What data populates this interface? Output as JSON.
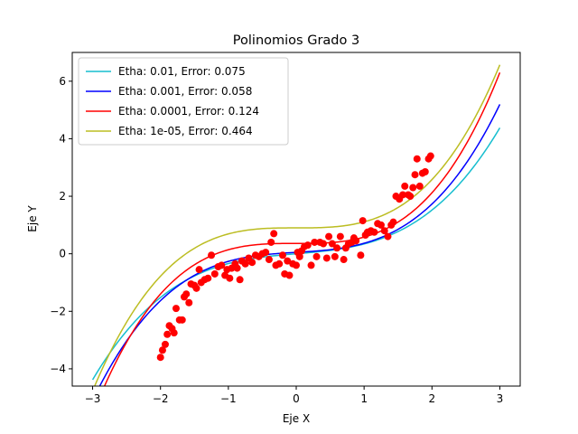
{
  "chart_data": {
    "type": "line",
    "title": "Polinomios Grado 3",
    "xlabel": "Eje X",
    "ylabel": "Eje Y",
    "xlim": [
      -3.3,
      3.3
    ],
    "ylim": [
      -4.6,
      7.0
    ],
    "xticks": [
      -3,
      -2,
      -1,
      0,
      1,
      2,
      3
    ],
    "yticks": [
      -4,
      -2,
      0,
      2,
      4,
      6
    ],
    "grid": false,
    "legend_position": "top-left",
    "series": [
      {
        "name": "Etha: 0.01, Error: 0.075",
        "color": "#17becf",
        "coeffs": [
          0.0,
          0.2,
          0.0,
          0.14
        ]
      },
      {
        "name": "Etha: 0.001, Error: 0.058",
        "color": "#0000ff",
        "coeffs": [
          0.05,
          0.14,
          0.0,
          0.175
        ]
      },
      {
        "name": "Etha: 0.0001, Error: 0.124",
        "color": "#ff0000",
        "coeffs": [
          0.36,
          0.0,
          0.0,
          0.22
        ]
      },
      {
        "name": "Etha: 1e-05, Error: 0.464",
        "color": "#bcbd22",
        "coeffs": [
          0.9,
          0.0,
          0.0,
          0.21
        ]
      }
    ],
    "x_range": [
      -3,
      3
    ],
    "scatter": {
      "color": "#ff0000",
      "points": [
        [
          -2.0,
          -3.6
        ],
        [
          -1.97,
          -3.35
        ],
        [
          -1.93,
          -3.15
        ],
        [
          -1.9,
          -2.8
        ],
        [
          -1.87,
          -2.5
        ],
        [
          -1.83,
          -2.6
        ],
        [
          -1.8,
          -2.75
        ],
        [
          -1.77,
          -1.9
        ],
        [
          -1.72,
          -2.3
        ],
        [
          -1.68,
          -2.3
        ],
        [
          -1.65,
          -1.5
        ],
        [
          -1.62,
          -1.4
        ],
        [
          -1.58,
          -1.7
        ],
        [
          -1.55,
          -1.05
        ],
        [
          -1.5,
          -1.1
        ],
        [
          -1.47,
          -1.2
        ],
        [
          -1.43,
          -0.55
        ],
        [
          -1.4,
          -1.0
        ],
        [
          -1.35,
          -0.9
        ],
        [
          -1.3,
          -0.85
        ],
        [
          -1.25,
          -0.05
        ],
        [
          -1.2,
          -0.7
        ],
        [
          -1.15,
          -0.45
        ],
        [
          -1.1,
          -0.4
        ],
        [
          -1.05,
          -0.75
        ],
        [
          -1.02,
          -0.55
        ],
        [
          -0.98,
          -0.85
        ],
        [
          -0.95,
          -0.5
        ],
        [
          -0.9,
          -0.35
        ],
        [
          -0.87,
          -0.5
        ],
        [
          -0.83,
          -0.9
        ],
        [
          -0.8,
          -0.25
        ],
        [
          -0.75,
          -0.35
        ],
        [
          -0.7,
          -0.15
        ],
        [
          -0.65,
          -0.3
        ],
        [
          -0.6,
          -0.05
        ],
        [
          -0.55,
          -0.1
        ],
        [
          -0.5,
          0.0
        ],
        [
          -0.45,
          0.05
        ],
        [
          -0.4,
          -0.2
        ],
        [
          -0.37,
          0.4
        ],
        [
          -0.33,
          0.7
        ],
        [
          -0.3,
          -0.4
        ],
        [
          -0.25,
          -0.35
        ],
        [
          -0.2,
          -0.05
        ],
        [
          -0.17,
          -0.7
        ],
        [
          -0.13,
          -0.25
        ],
        [
          -0.1,
          -0.75
        ],
        [
          -0.05,
          -0.35
        ],
        [
          0.0,
          -0.4
        ],
        [
          0.02,
          0.05
        ],
        [
          0.05,
          -0.1
        ],
        [
          0.08,
          0.1
        ],
        [
          0.12,
          0.25
        ],
        [
          0.17,
          0.3
        ],
        [
          0.22,
          -0.4
        ],
        [
          0.27,
          0.4
        ],
        [
          0.3,
          -0.1
        ],
        [
          0.35,
          0.4
        ],
        [
          0.4,
          0.35
        ],
        [
          0.45,
          -0.15
        ],
        [
          0.48,
          0.6
        ],
        [
          0.53,
          0.35
        ],
        [
          0.57,
          -0.1
        ],
        [
          0.6,
          0.2
        ],
        [
          0.65,
          0.6
        ],
        [
          0.7,
          -0.2
        ],
        [
          0.73,
          0.2
        ],
        [
          0.77,
          0.35
        ],
        [
          0.82,
          0.4
        ],
        [
          0.85,
          0.55
        ],
        [
          0.88,
          0.45
        ],
        [
          0.95,
          -0.05
        ],
        [
          0.98,
          1.15
        ],
        [
          1.02,
          0.65
        ],
        [
          1.05,
          0.75
        ],
        [
          1.1,
          0.8
        ],
        [
          1.15,
          0.75
        ],
        [
          1.2,
          1.05
        ],
        [
          1.25,
          1.0
        ],
        [
          1.3,
          0.8
        ],
        [
          1.35,
          0.6
        ],
        [
          1.4,
          1.0
        ],
        [
          1.43,
          1.1
        ],
        [
          1.47,
          2.0
        ],
        [
          1.52,
          1.9
        ],
        [
          1.57,
          2.05
        ],
        [
          1.6,
          2.35
        ],
        [
          1.65,
          2.05
        ],
        [
          1.68,
          2.0
        ],
        [
          1.72,
          2.3
        ],
        [
          1.75,
          2.75
        ],
        [
          1.78,
          3.3
        ],
        [
          1.82,
          2.35
        ],
        [
          1.86,
          2.8
        ],
        [
          1.9,
          2.85
        ],
        [
          1.95,
          3.3
        ],
        [
          1.98,
          3.4
        ]
      ]
    }
  }
}
